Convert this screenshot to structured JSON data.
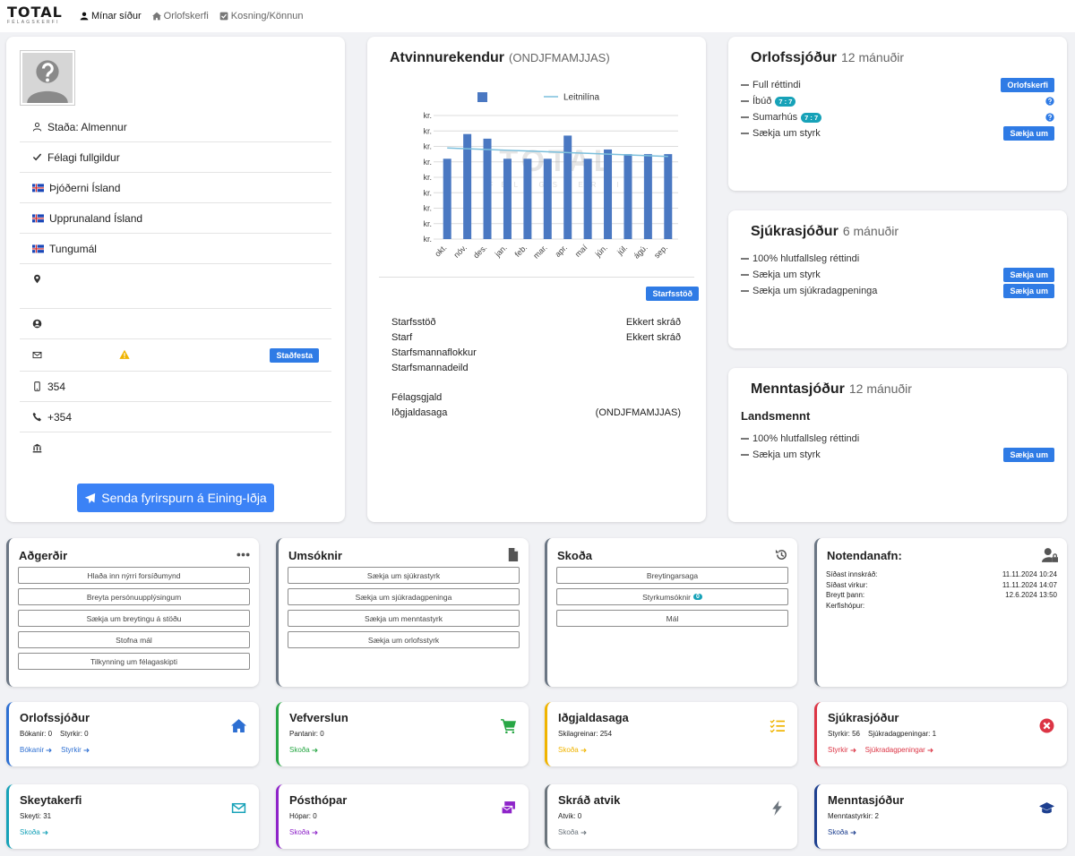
{
  "nav": {
    "logo": "TOTAL",
    "logo_sub": "FÉLAGSKERFI",
    "links": [
      "Mínar síður",
      "Orlofskerfi",
      "Kosning/Könnun"
    ]
  },
  "profile": {
    "rows": [
      "Staða: Almennur",
      "Félagi fullgildur",
      "Þjóðerni Ísland",
      "Upprunaland Ísland",
      "Tungumál"
    ],
    "email_button": "Staðfesta",
    "phone": "354",
    "mobile": "+354",
    "send_button": "Senda fyrirspurn á Eining-Iðja"
  },
  "employer": {
    "title": "Atvinnurekendur",
    "period": "(ONDJFMAMJJAS)",
    "button": "Starfsstöð",
    "rows": [
      {
        "label": "Starfsstöð",
        "value": "Ekkert skráð"
      },
      {
        "label": "Starf",
        "value": "Ekkert skráð"
      },
      {
        "label": "Starfsmannaflokkur"
      },
      {
        "label": "Starfsmannadeild"
      },
      {
        "label": "Félagsgjald"
      },
      {
        "label": "Iðgjaldasaga",
        "value": "(ONDJFMAMJJAS)"
      }
    ]
  },
  "chart_data": {
    "type": "bar",
    "categories": [
      "okt.",
      "nóv.",
      "des.",
      "jan.",
      "feb.",
      "mar.",
      "apr.",
      "maí",
      "jún.",
      "júl.",
      "ágú.",
      "sep."
    ],
    "series": [
      {
        "color": "#4a78c2",
        "values": [
          5.2,
          6.8,
          6.5,
          5.2,
          5.2,
          5.2,
          6.7,
          5.2,
          5.8,
          5.5,
          5.5,
          5.5
        ]
      },
      {
        "name": "Leitnilína",
        "type": "line",
        "color": "#7bbfdc",
        "values": [
          5.9,
          5.85,
          5.8,
          5.75,
          5.7,
          5.65,
          5.6,
          5.55,
          5.5,
          5.45,
          5.4,
          5.35
        ]
      }
    ],
    "ylim": [
      0,
      8
    ],
    "yticks": [
      {
        "value": 0,
        "label": "kr."
      },
      {
        "value": 1,
        "label": "kr."
      },
      {
        "value": 2,
        "label": "kr."
      },
      {
        "value": 3,
        "label": "kr."
      },
      {
        "value": 4,
        "label": "kr."
      },
      {
        "value": 5,
        "label": "kr."
      },
      {
        "value": 6,
        "label": "kr."
      },
      {
        "value": 7,
        "label": "kr."
      },
      {
        "value": 8,
        "label": "kr."
      }
    ],
    "grid": true,
    "watermark": "TOTAL",
    "watermark_sub": "FÉLAGSKERFI"
  },
  "funds": [
    {
      "title": "Orlofssjóður",
      "period": "12 mánuðir",
      "items": [
        {
          "text": "Full réttindi",
          "button": "Orlofskerfi"
        },
        {
          "text": "Íbúð",
          "badge": "7 : 7",
          "help": true
        },
        {
          "text": "Sumarhús",
          "badge": "7 : 7",
          "help": true
        },
        {
          "text": "Sækja um styrk",
          "button": "Sækja um"
        }
      ]
    },
    {
      "title": "Sjúkrasjóður",
      "period": "6 mánuðir",
      "items": [
        {
          "text": "100% hlutfallsleg réttindi"
        },
        {
          "text": "Sækja um styrk",
          "button": "Sækja um"
        },
        {
          "text": "Sækja um sjúkradagpeninga",
          "button": "Sækja um"
        }
      ]
    },
    {
      "title": "Menntasjóður",
      "period": "12 mánuðir",
      "subtitle": "Landsmennt",
      "items": [
        {
          "text": "100% hlutfallsleg réttindi"
        },
        {
          "text": "Sækja um styrk",
          "button": "Sækja um"
        }
      ]
    }
  ],
  "panels": [
    {
      "title": "Aðgerðir",
      "buttons": [
        {
          "text": "Hlaða inn nýrri forsíðumynd"
        },
        {
          "text": "Breyta persónuupplýsingum"
        },
        {
          "text": "Sækja um breytingu á stöðu"
        },
        {
          "text": "Stofna mál"
        },
        {
          "text": "Tilkynning um félagaskipti"
        }
      ]
    },
    {
      "title": "Umsóknir",
      "buttons": [
        {
          "text": "Sækja um sjúkrastyrk"
        },
        {
          "text": "Sækja um sjúkradagpeninga"
        },
        {
          "text": "Sækja um menntastyrk"
        },
        {
          "text": "Sækja um orlofsstyrk"
        }
      ]
    },
    {
      "title": "Skoða",
      "buttons": [
        {
          "text": "Breytingarsaga"
        },
        {
          "text": "Styrkumsóknir",
          "badge": 0
        },
        {
          "text": "Mál"
        }
      ]
    }
  ],
  "user": {
    "title": "Notendanafn:",
    "rows": [
      {
        "label": "Síðast innskráð:",
        "value": "11.11.2024 10:24"
      },
      {
        "label": "Síðast virkur:",
        "value": "11.11.2024 14:07"
      },
      {
        "label": "Breytt þann:",
        "value": "12.6.2024 13:50"
      },
      {
        "label": "Kerfishópur:"
      }
    ]
  },
  "tiles": [
    {
      "title": "Orlofssjóður",
      "color": "#2d6fd2",
      "stats": [
        "Bókanir: 0",
        "Styrkir: 0"
      ],
      "links": [
        "Bókanir",
        "Styrkir"
      ]
    },
    {
      "title": "Vefverslun",
      "color": "#28a745",
      "stats": [
        "Pantanir: 0"
      ],
      "links": [
        "Skoða"
      ]
    },
    {
      "title": "Iðgjaldasaga",
      "color": "#f0b400",
      "stats": [
        "Skilagreinar: 254"
      ],
      "links": [
        "Skoða"
      ]
    },
    {
      "title": "Sjúkrasjóður",
      "color": "#dc3545",
      "stats": [
        "Styrkir: 56",
        "Sjúkradagpeningar: 1"
      ],
      "links": [
        "Styrkir",
        "Sjúkradagpeningar"
      ]
    },
    {
      "title": "Skeytakerfi",
      "color": "#17a2b8",
      "stats": [
        "Skeyti: 31"
      ],
      "links": [
        "Skoða"
      ]
    },
    {
      "title": "Pósthópar",
      "color": "#8e24c9",
      "stats": [
        "Hópar: 0"
      ],
      "links": [
        "Skoða"
      ]
    },
    {
      "title": "Skráð atvik",
      "color": "#6c757d",
      "stats": [
        "Atvik: 0"
      ],
      "links": [
        "Skoða"
      ]
    },
    {
      "title": "Menntasjóður",
      "color": "#1d3f8f",
      "stats": [
        "Menntastyrkir: 2"
      ],
      "links": [
        "Skoða"
      ]
    }
  ]
}
